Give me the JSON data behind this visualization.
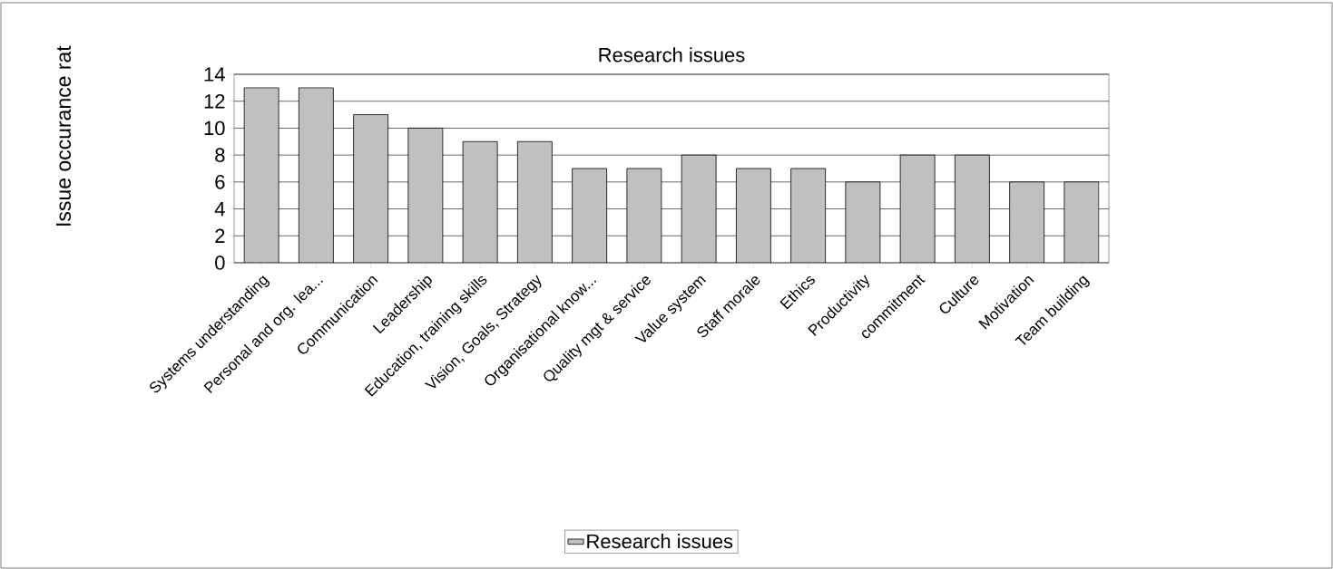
{
  "chart_data": {
    "type": "bar",
    "title": "Research issues",
    "ylabel": "Issue occurance rat",
    "categories": [
      "Systems understanding",
      "Personal and org. lea...",
      "Communication",
      "Leadership",
      "Education, training skills",
      "Vision, Goals, Strategy",
      "Organisational know...",
      "Quality mgt & service",
      "Value system",
      "Staff morale",
      "Ethics",
      "Productivity",
      "commitment",
      "Culture",
      "Motivation",
      "Team building"
    ],
    "series": [
      {
        "name": "Research issues",
        "color": "#c0c0c0",
        "values": [
          13,
          13,
          11,
          10,
          9,
          9,
          7,
          7,
          8,
          7,
          7,
          6,
          8,
          8,
          6,
          6
        ]
      }
    ],
    "ylim": [
      0,
      14
    ],
    "yticks": [
      0,
      2,
      4,
      6,
      8,
      10,
      12,
      14
    ],
    "grid": "y",
    "legend": "bottom"
  }
}
